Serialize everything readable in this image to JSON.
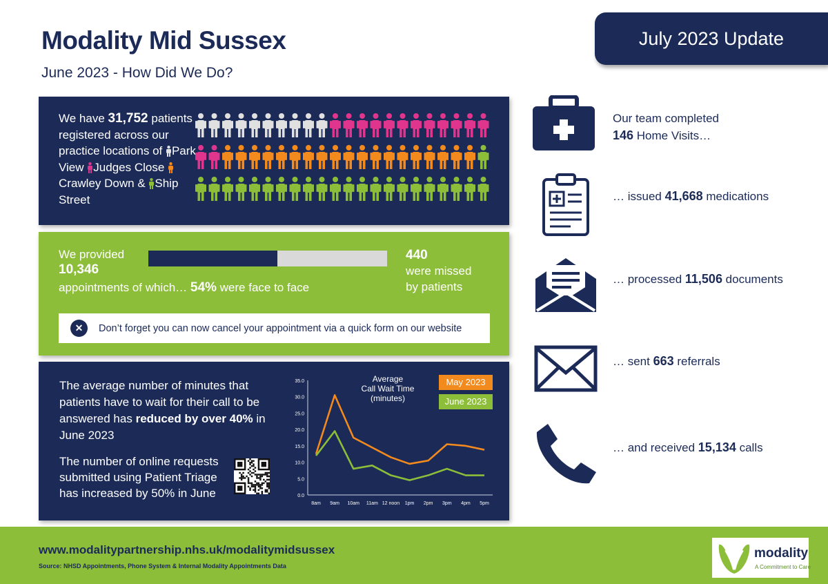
{
  "header": {
    "title": "Modality Mid Sussex",
    "subtitle": "June 2023 - How Did We Do?",
    "badge": "July 2023 Update"
  },
  "registered": {
    "line1_prefix": "We have ",
    "count": "31,752",
    "line2": "patients registered across our practice locations of ",
    "loc1": "Park View",
    "loc2": "Judges Close",
    "loc3": "Crawley Down",
    "amp": " & ",
    "loc4": "Ship Street",
    "colors": {
      "park_view": "#e0e0e0",
      "judges_close": "#e0358d",
      "crawley_down": "#f28a1e",
      "ship_street": "#8dbe3a"
    },
    "figure_counts": {
      "park_view": 10,
      "judges_close": 14,
      "crawley_down": 19,
      "ship_street": 23
    }
  },
  "appointments": {
    "provided_label": "We provided",
    "count": "10,346",
    "of_which": "appointments of which… ",
    "face_pct": "54%",
    "face_suffix": " were face to face",
    "face_fraction": 0.54,
    "missed_count": "440",
    "missed_line1": "were missed",
    "missed_line2": "by patients",
    "notice": "Don’t forget you can now cancel your appointment via a quick form on our website"
  },
  "calls_panel": {
    "text_a_prefix": "The average number of minutes that patients have to wait for their call to be answered has ",
    "text_a_bold": "reduced by over 40%",
    "text_a_suffix": " in June 2023",
    "text_b": "The number of online requests submitted using Patient Triage has increased by 50% in June"
  },
  "chart_data": {
    "type": "line",
    "title": "Average Call Wait Time (minutes)",
    "title_lines": [
      "Average",
      "Call Wait Time",
      "(minutes)"
    ],
    "categories": [
      "8am",
      "9am",
      "10am",
      "11am",
      "12 noon",
      "1pm",
      "2pm",
      "3pm",
      "4pm",
      "5pm"
    ],
    "series": [
      {
        "name": "May 2023",
        "color": "#f28a1e",
        "values": [
          12.5,
          30.5,
          17.5,
          14.5,
          11.5,
          9.5,
          10.5,
          15.5,
          15.0,
          13.8
        ]
      },
      {
        "name": "June 2023",
        "color": "#8dbe3a",
        "values": [
          12.0,
          19.5,
          8.0,
          9.0,
          6.0,
          4.5,
          6.0,
          8.0,
          6.0,
          6.0
        ]
      }
    ],
    "ylim": [
      0,
      35
    ],
    "yticks": [
      "0.0",
      "5.0",
      "10.0",
      "15.0",
      "20.0",
      "25.0",
      "30.0",
      "35.0"
    ],
    "legend_placement": "top-right",
    "grid": false
  },
  "stats": {
    "home_visits_line1": "Our team completed",
    "home_visits_count": "146",
    "home_visits_suffix": " Home Visits…",
    "meds_prefix": "… issued ",
    "meds_count": "41,668",
    "meds_suffix": " medications",
    "docs_prefix": "… processed ",
    "docs_count": "11,506",
    "docs_suffix": " documents",
    "ref_prefix": "… sent ",
    "ref_count": "663",
    "ref_suffix": " referrals",
    "calls_prefix": "… and received ",
    "calls_count": "15,134",
    "calls_suffix": " calls"
  },
  "footer": {
    "url": "www.modalitypartnership.nhs.uk/modalitymidsussex",
    "source": "Source: NHSD Appointments, Phone System & Internal Modality Appointments Data",
    "logo_name": "modality",
    "logo_tagline": "A Commitment to Care"
  },
  "colors": {
    "navy": "#1b2a57",
    "green": "#8dbe3a",
    "orange": "#f28a1e",
    "pink": "#e0358d"
  }
}
